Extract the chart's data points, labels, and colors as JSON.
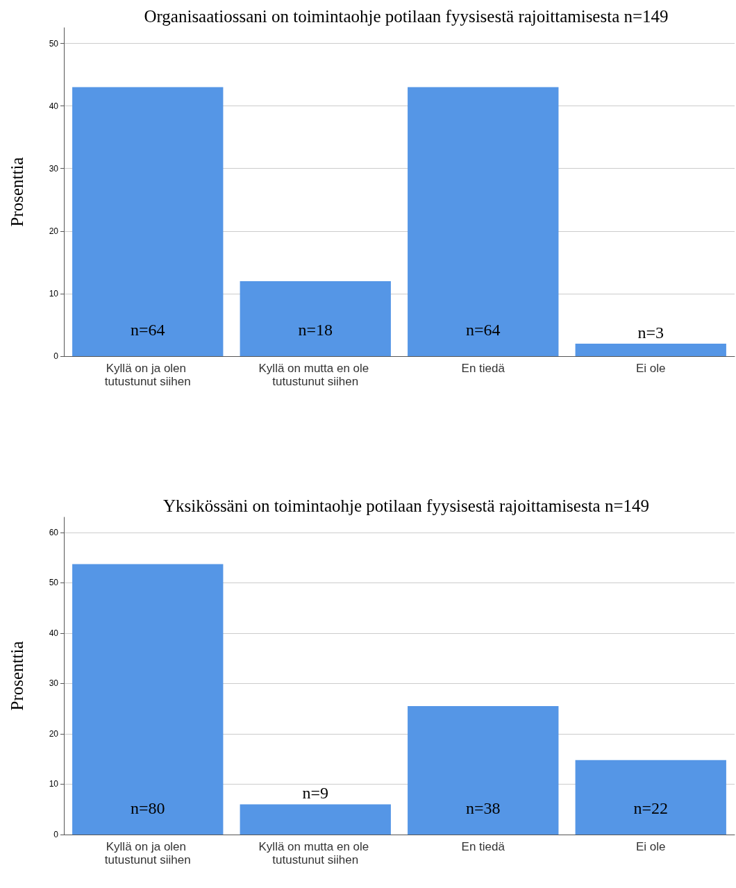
{
  "chart_data": [
    {
      "type": "bar",
      "title": "Organisaatiossani on toimintaohje potilaan fyysisestä rajoittamisesta n=149",
      "ylabel": "Prosenttia",
      "categories": [
        "Kyllä on ja olen tutustunut siihen",
        "Kyllä on mutta en ole tutustunut siihen",
        "En tiedä",
        "Ei ole"
      ],
      "values": [
        43,
        12,
        43,
        2
      ],
      "color": "#5596e6",
      "annotations": [
        "n=64",
        "n=18",
        "n=64",
        "n=3"
      ],
      "ylim": [
        0,
        52.5
      ],
      "yticks": [
        0,
        10,
        20,
        30,
        40,
        50
      ],
      "grid": "y"
    },
    {
      "type": "bar",
      "title": "Yksikössäni on toimintaohje potilaan fyysisestä rajoittamisesta n=149",
      "ylabel": "Prosenttia",
      "categories": [
        "Kyllä on ja olen tutustunut siihen",
        "Kyllä on mutta en ole tutustunut siihen",
        "En tiedä",
        "Ei ole"
      ],
      "values": [
        53.7,
        6,
        25.5,
        14.8
      ],
      "color": "#5596e6",
      "annotations": [
        "n=80",
        "n=9",
        "n=38",
        "n=22"
      ],
      "ylim": [
        0,
        63
      ],
      "yticks": [
        0,
        10,
        20,
        30,
        40,
        50,
        60
      ],
      "grid": "y"
    }
  ]
}
